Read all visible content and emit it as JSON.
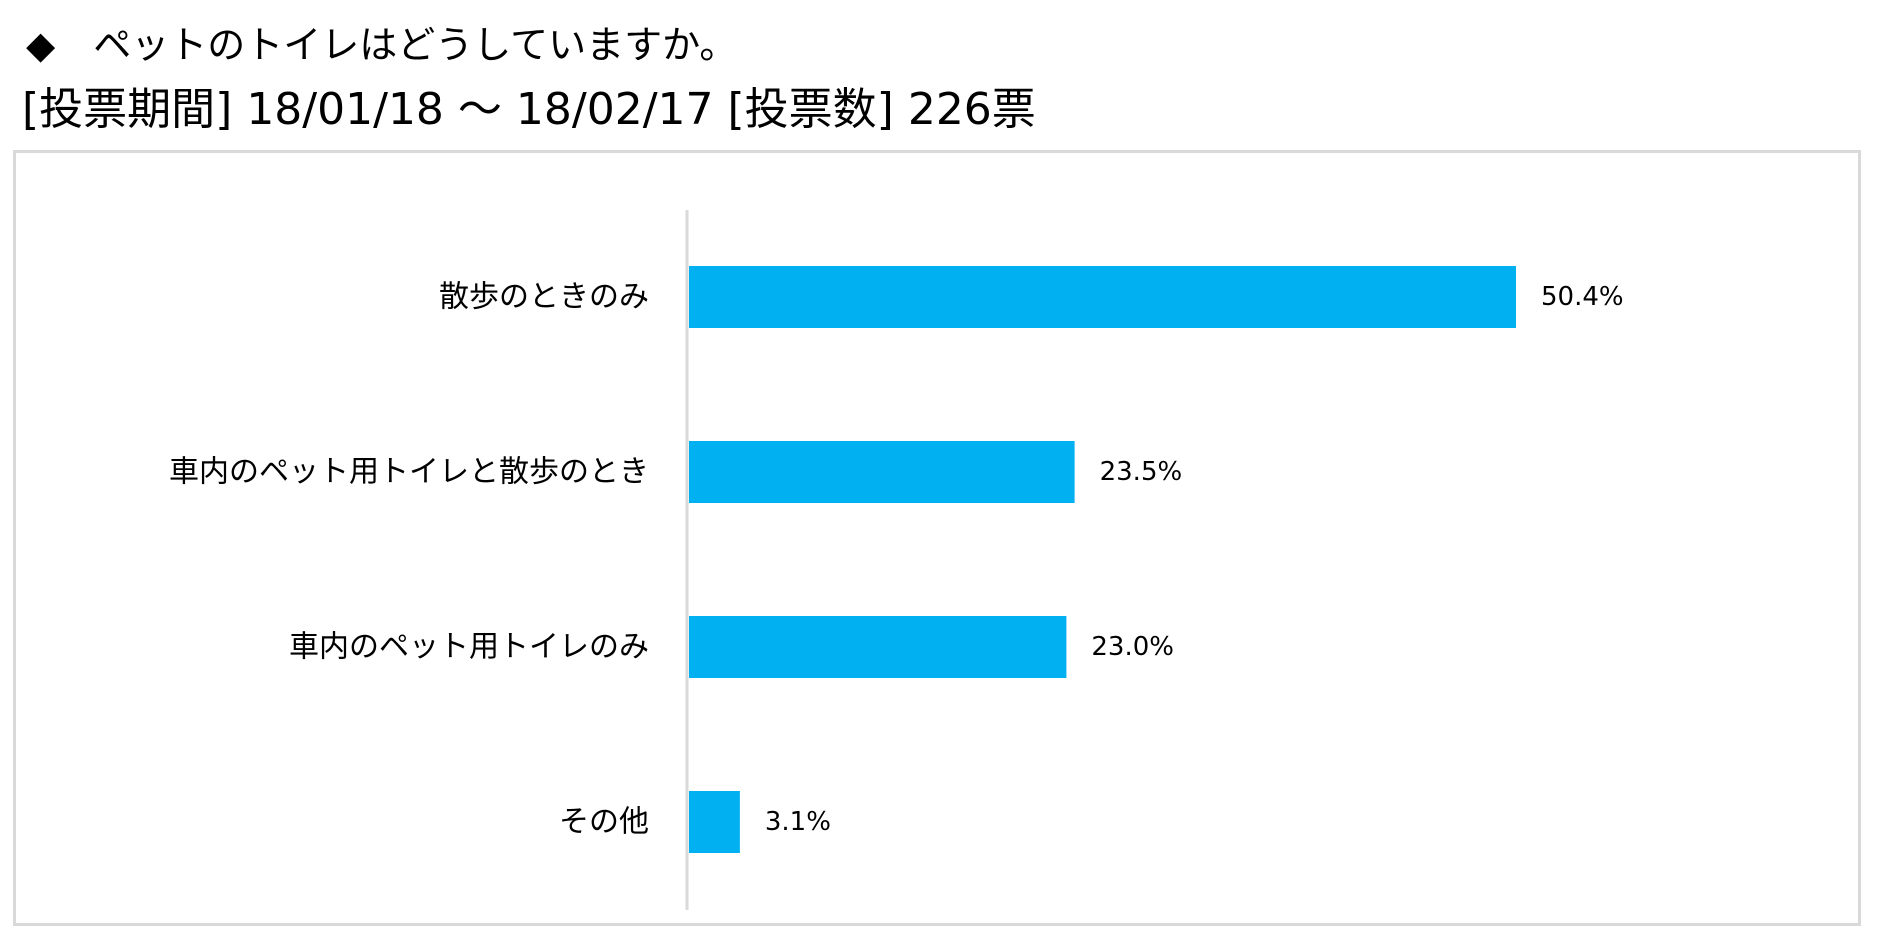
{
  "header": {
    "question_marker": "◆",
    "question_text": "ペットのトイレはどうしていますか。",
    "period_line": "[投票期間] 18/01/18 ～ 18/02/17 [投票数] 226票"
  },
  "colors": {
    "bar": "#00B0F0",
    "axis": "#d9d9d9",
    "frame": "#d9d9d9",
    "text": "#000000"
  },
  "chart_data": {
    "type": "bar",
    "orientation": "horizontal",
    "categories": [
      "散歩のときのみ",
      "車内のペット用トイレと散歩のとき",
      "車内のペット用トイレのみ",
      "その他"
    ],
    "values": [
      50.4,
      23.5,
      23.0,
      3.1
    ],
    "data_labels": [
      "50.4%",
      "23.5%",
      "23.0%",
      "3.1%"
    ],
    "unit": "%",
    "xlim": [
      0,
      100
    ],
    "grid": false,
    "legend": "none"
  }
}
